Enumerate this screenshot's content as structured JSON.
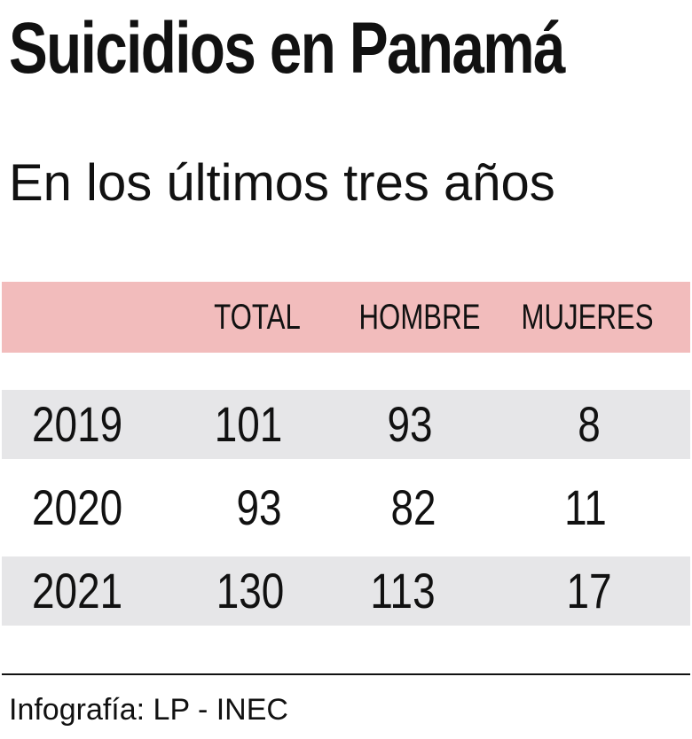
{
  "header": {
    "title": "Suicidios en Panamá",
    "subtitle": "En los últimos tres años"
  },
  "chart_data": {
    "type": "table",
    "columns": [
      "",
      "TOTAL",
      "HOMBRE",
      "MUJERES"
    ],
    "rows": [
      {
        "year": "2019",
        "total": 101,
        "hombre": 93,
        "mujeres": 8
      },
      {
        "year": "2020",
        "total": 93,
        "hombre": 82,
        "mujeres": 11
      },
      {
        "year": "2021",
        "total": 130,
        "hombre": 113,
        "mujeres": 17
      }
    ],
    "colors": {
      "header_background": "#f2bcbc",
      "row_stripe": "#e6e6e8",
      "text": "#111111"
    }
  },
  "footer": {
    "source": "Infografía: LP - INEC"
  }
}
